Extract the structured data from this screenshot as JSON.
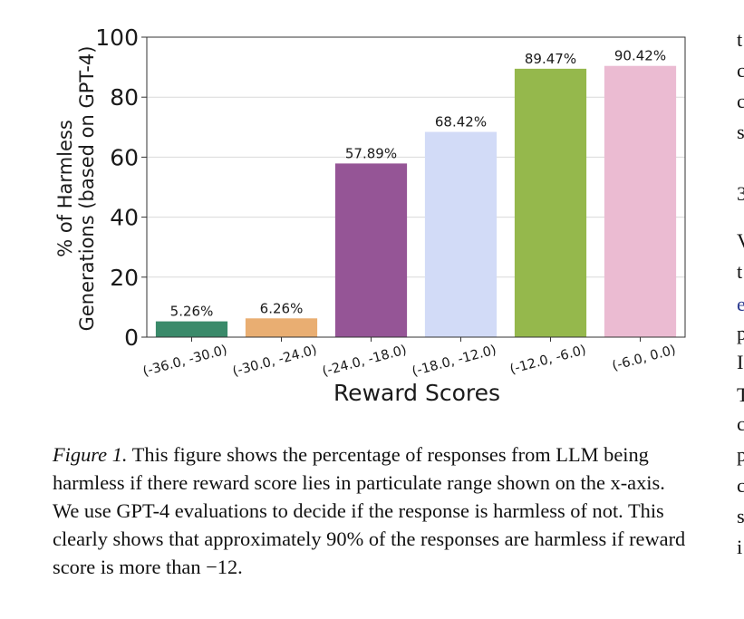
{
  "chart_data": {
    "type": "bar",
    "categories": [
      "(-36.0, -30.0)",
      "(-30.0, -24.0)",
      "(-24.0, -18.0)",
      "(-18.0, -12.0)",
      "(-12.0, -6.0)",
      "(-6.0, 0.0)"
    ],
    "values": [
      5.26,
      6.26,
      57.89,
      68.42,
      89.47,
      90.42
    ],
    "value_labels": [
      "5.26%",
      "6.26%",
      "57.89%",
      "68.42%",
      "89.47%",
      "90.42%"
    ],
    "colors": [
      "#3a8a6a",
      "#e9ae72",
      "#955596",
      "#d2dbf7",
      "#95b84c",
      "#ebbbd2"
    ],
    "xlabel": "Reward Scores",
    "ylabel_line1": "% of Harmless",
    "ylabel_line2": "Generations (based on GPT-4)",
    "ylim": [
      0,
      100
    ],
    "yticks": [
      0,
      20,
      40,
      60,
      80,
      100
    ],
    "grid": true
  },
  "caption": {
    "label": "Figure 1.",
    "text": " This figure shows the percentage of responses from LLM being harmless if there reward score lies in particulate range shown on the x-axis. We use GPT-4 evaluations to decide if the response is harmless of not. This clearly shows that approximately 90% of the responses are harmless if reward score is more than −12."
  },
  "side_column": [
    "t",
    "c",
    "c",
    "s",
    "3",
    "V",
    "t",
    "e",
    "p",
    "I",
    "T",
    "c",
    "p",
    "c",
    "s",
    "i"
  ]
}
